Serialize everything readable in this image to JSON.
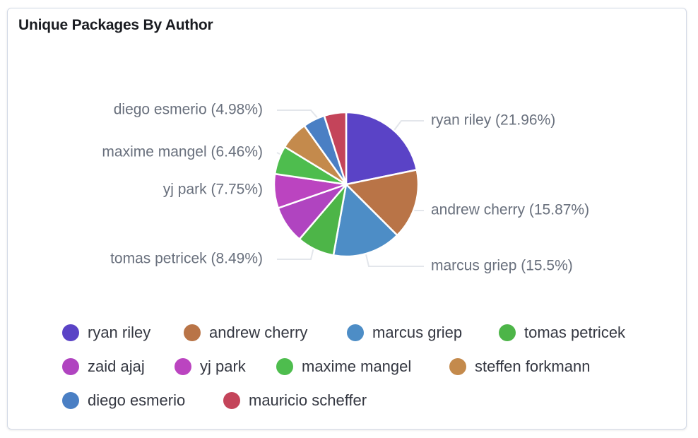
{
  "panel": {
    "title": "Unique Packages By Author"
  },
  "chart_data": {
    "type": "pie",
    "title": "Unique Packages By Author",
    "slices": [
      {
        "name": "ryan riley",
        "value": 21.96,
        "label": "ryan riley (21.96%)",
        "color": "#5a43c6"
      },
      {
        "name": "andrew cherry",
        "value": 15.87,
        "label": "andrew cherry (15.87%)",
        "color": "#b97447"
      },
      {
        "name": "marcus griep",
        "value": 15.5,
        "label": "marcus griep (15.5%)",
        "color": "#4d8dc6"
      },
      {
        "name": "tomas petricek",
        "value": 8.49,
        "label": "tomas petricek (8.49%)",
        "color": "#4db548"
      },
      {
        "name": "zaid ajaj",
        "value": 8.49,
        "label": "",
        "color": "#b044c0"
      },
      {
        "name": "yj park",
        "value": 7.75,
        "label": "yj park (7.75%)",
        "color": "#bb44c0"
      },
      {
        "name": "maxime mangel",
        "value": 6.46,
        "label": "maxime mangel (6.46%)",
        "color": "#4ebd4e"
      },
      {
        "name": "steffen forkmann",
        "value": 6.46,
        "label": "",
        "color": "#c48a4c"
      },
      {
        "name": "diego esmerio",
        "value": 4.98,
        "label": "diego esmerio (4.98%)",
        "color": "#4a7fc4"
      },
      {
        "name": "mauricio scheffer",
        "value": 4.98,
        "label": "",
        "color": "#c4445a"
      }
    ],
    "legend": [
      "ryan riley",
      "andrew cherry",
      "marcus griep",
      "tomas petricek",
      "zaid ajaj",
      "yj park",
      "maxime mangel",
      "steffen forkmann",
      "diego esmerio",
      "mauricio scheffer"
    ],
    "legend_position": "bottom"
  }
}
